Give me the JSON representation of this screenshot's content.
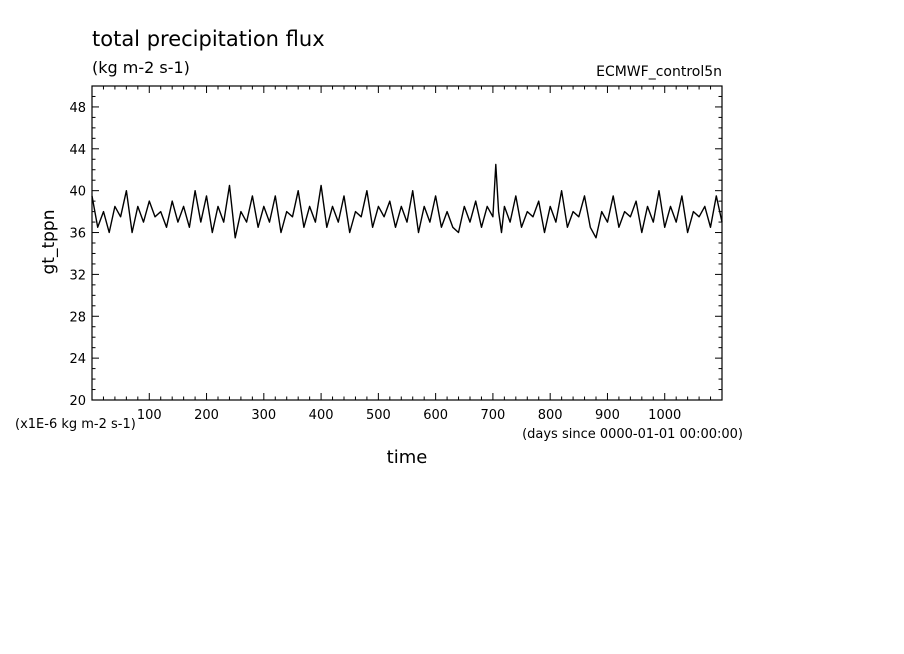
{
  "chart_data": {
    "type": "line",
    "title": "total precipitation flux",
    "subtitle": "(kg m-2 s-1)",
    "source_label": "ECMWF_control5n",
    "xlabel": "time",
    "x_units": "(days since 0000-01-01 00:00:00)",
    "ylabel": "gt_tppn",
    "y_scale_note": "(x1E-6 kg m-2 s-1)",
    "xlim": [
      0,
      1100
    ],
    "ylim": [
      20,
      50
    ],
    "x_ticks": [
      100,
      200,
      300,
      400,
      500,
      600,
      700,
      800,
      900,
      1000
    ],
    "y_ticks": [
      20,
      24,
      28,
      32,
      36,
      40,
      44,
      48
    ],
    "grid": false,
    "color": "#000000",
    "series": [
      {
        "x": [
          0,
          10,
          20,
          30,
          40,
          50,
          60,
          70,
          80,
          90,
          100,
          110,
          120,
          130,
          140,
          150,
          160,
          170,
          180,
          190,
          200,
          210,
          220,
          230,
          240,
          250,
          260,
          270,
          280,
          290,
          300,
          310,
          320,
          330,
          340,
          350,
          360,
          370,
          380,
          390,
          400,
          410,
          420,
          430,
          440,
          450,
          460,
          470,
          480,
          490,
          500,
          510,
          520,
          530,
          540,
          550,
          560,
          570,
          580,
          590,
          600,
          610,
          620,
          630,
          640,
          650,
          660,
          670,
          680,
          690,
          700,
          705,
          710,
          715,
          720,
          730,
          740,
          750,
          760,
          770,
          780,
          790,
          800,
          810,
          820,
          830,
          840,
          850,
          860,
          870,
          880,
          890,
          900,
          910,
          920,
          930,
          940,
          950,
          960,
          970,
          980,
          990,
          1000,
          1010,
          1020,
          1030,
          1040,
          1050,
          1060,
          1070,
          1080,
          1090,
          1100
        ],
        "values": [
          39.5,
          36.5,
          38.0,
          36.0,
          38.5,
          37.5,
          40.0,
          36.0,
          38.5,
          37.0,
          39.0,
          37.5,
          38.0,
          36.5,
          39.0,
          37.0,
          38.5,
          36.5,
          40.0,
          37.0,
          39.5,
          36.0,
          38.5,
          37.0,
          40.5,
          35.5,
          38.0,
          37.0,
          39.5,
          36.5,
          38.5,
          37.0,
          39.5,
          36.0,
          38.0,
          37.5,
          40.0,
          36.5,
          38.5,
          37.0,
          40.5,
          36.5,
          38.5,
          37.0,
          39.5,
          36.0,
          38.0,
          37.5,
          40.0,
          36.5,
          38.5,
          37.5,
          39.0,
          36.5,
          38.5,
          37.0,
          40.0,
          36.0,
          38.5,
          37.0,
          39.5,
          36.5,
          38.0,
          36.5,
          36.0,
          38.5,
          37.0,
          39.0,
          36.5,
          38.5,
          37.5,
          42.5,
          38.0,
          36.0,
          38.5,
          37.0,
          39.5,
          36.5,
          38.0,
          37.5,
          39.0,
          36.0,
          38.5,
          37.0,
          40.0,
          36.5,
          38.0,
          37.5,
          39.5,
          36.5,
          35.5,
          38.0,
          37.0,
          39.5,
          36.5,
          38.0,
          37.5,
          39.0,
          36.0,
          38.5,
          37.0,
          40.0,
          36.5,
          38.5,
          37.0,
          39.5,
          36.0,
          38.0,
          37.5,
          38.5,
          36.5,
          39.5,
          37.0
        ]
      }
    ]
  }
}
